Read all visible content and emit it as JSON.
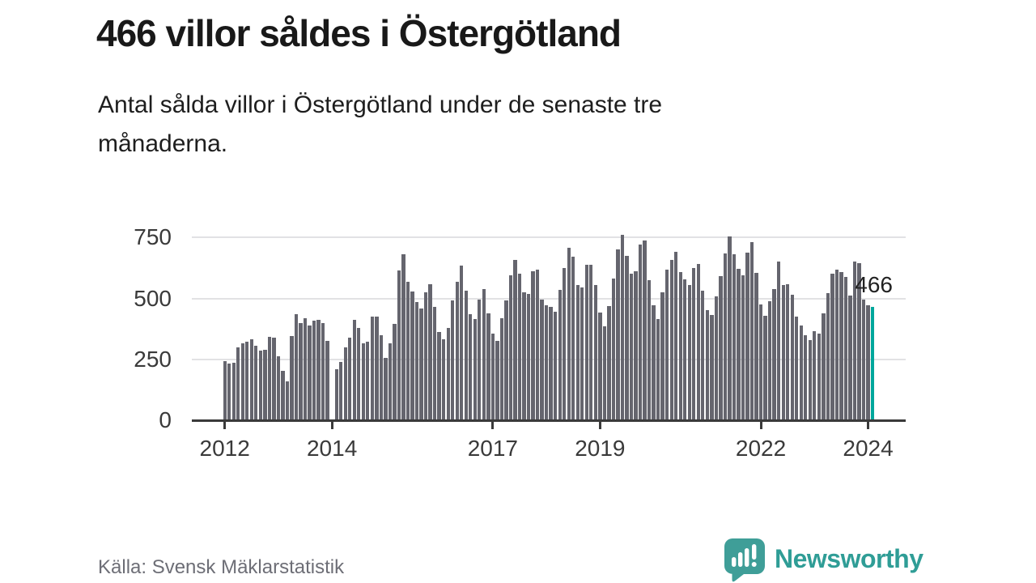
{
  "title": "466 villor såldes i Östergötland",
  "subtitle": "Antal sålda villor i Östergötland under de senaste tre månaderna.",
  "subtitle_lines": [
    "Antal sålda villor i Östergötland under de senaste tre",
    "månaderna."
  ],
  "source": "Källa: Svensk Mäklarstatistik",
  "brand": {
    "name": "Newsworthy",
    "icon": "newsworthy-speech-bubble-chart-icon",
    "icon_color": "#3f9e98",
    "text_color": "#2f9d96"
  },
  "chart_data": {
    "type": "bar",
    "title": "466 villor såldes i Östergötland",
    "xlabel": "",
    "ylabel": "",
    "x_unit": "month",
    "x_start": "2012-01",
    "x_end": "2024-02",
    "ylim": [
      0,
      780
    ],
    "y_ticks": [
      0,
      250,
      500,
      750
    ],
    "grid": "horizontal",
    "legend": "none",
    "bar_color": "#65656e",
    "x_ticks": [
      {
        "label": "2012",
        "month_index": 0
      },
      {
        "label": "2014",
        "month_index": 24
      },
      {
        "label": "2017",
        "month_index": 60
      },
      {
        "label": "2019",
        "month_index": 84
      },
      {
        "label": "2022",
        "month_index": 120
      },
      {
        "label": "2024",
        "month_index": 144
      }
    ],
    "values": [
      245,
      232,
      238,
      300,
      316,
      322,
      332,
      307,
      285,
      290,
      342,
      338,
      263,
      203,
      161,
      345,
      436,
      400,
      419,
      390,
      410,
      414,
      400,
      327,
      null,
      210,
      240,
      301,
      338,
      414,
      381,
      318,
      323,
      425,
      425,
      351,
      258,
      318,
      395,
      616,
      680,
      568,
      528,
      487,
      460,
      524,
      559,
      466,
      364,
      334,
      378,
      493,
      568,
      634,
      532,
      436,
      417,
      496,
      539,
      439,
      356,
      327,
      419,
      493,
      594,
      660,
      603,
      526,
      519,
      612,
      620,
      496,
      474,
      466,
      447,
      534,
      625,
      707,
      671,
      554,
      546,
      638,
      638,
      557,
      441,
      386,
      468,
      581,
      700,
      762,
      674,
      603,
      612,
      721,
      737,
      576,
      471,
      417,
      524,
      617,
      658,
      691,
      608,
      579,
      557,
      625,
      641,
      532,
      452,
      433,
      510,
      592,
      685,
      754,
      680,
      623,
      594,
      688,
      732,
      605,
      477,
      428,
      490,
      540,
      652,
      557,
      559,
      515,
      425,
      389,
      351,
      329,
      365,
      356,
      439,
      521,
      601,
      618,
      607,
      587,
      513,
      653,
      645,
      497,
      472,
      466
    ],
    "highlight": {
      "month_index": 145,
      "value": 466,
      "label": "466",
      "color": "#00a79c"
    }
  }
}
